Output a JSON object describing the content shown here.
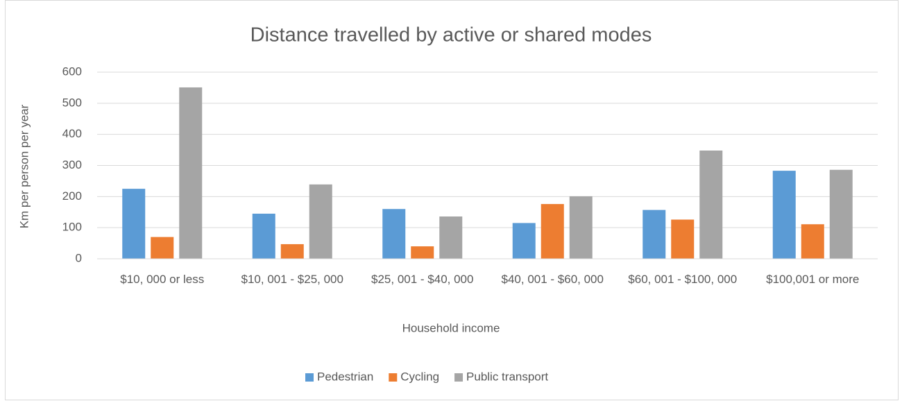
{
  "chart_data": {
    "type": "bar",
    "title": "Distance travelled by active or shared modes",
    "x_label": "Household income",
    "y_label": "Km per person per year",
    "categories": [
      "$10, 000 or less",
      "$10, 001 - $25, 000",
      "$25, 001 - $40, 000",
      "$40, 001 - $60, 000",
      "$60, 001 - $100, 000",
      "$100,001 or more"
    ],
    "series": [
      {
        "name": "Pedestrian",
        "color": "#5b9bd5",
        "values": [
          225,
          145,
          160,
          115,
          157,
          283
        ]
      },
      {
        "name": "Cycling",
        "color": "#ed7d31",
        "values": [
          70,
          47,
          40,
          176,
          126,
          111
        ]
      },
      {
        "name": "Public transport",
        "color": "#a5a5a5",
        "values": [
          551,
          239,
          136,
          201,
          348,
          286
        ]
      }
    ],
    "ylim": [
      0,
      600
    ],
    "yticks": [
      0,
      100,
      200,
      300,
      400,
      500,
      600
    ],
    "grid": true,
    "legend": "bottom"
  }
}
